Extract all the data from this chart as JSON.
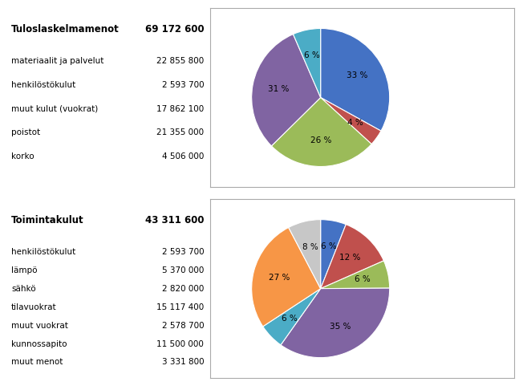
{
  "chart1": {
    "title": "Tuloslaskelmamenot",
    "title_value": "69 172 600",
    "values": [
      22855800,
      2593700,
      17862100,
      21355000,
      4506000
    ],
    "pct_labels": [
      "33 %",
      "4 %",
      "26 %",
      "31 %",
      "6 %"
    ],
    "colors": [
      "#4472C4",
      "#C0504D",
      "#9BBB59",
      "#8064A2",
      "#4BACC6"
    ],
    "legend_labels": [
      "materiaalit ja\npalvelut",
      "henkilöstökulut",
      "muut kulut\n(vuokrat)",
      "poistot",
      "korko"
    ],
    "items": [
      [
        "materiaalit ja palvelut",
        "22 855 800"
      ],
      [
        "henkilöstökulut",
        "2 593 700"
      ],
      [
        "muut kulut (vuokrat)",
        "17 862 100"
      ],
      [
        "poistot",
        "21 355 000"
      ],
      [
        "korko",
        "4 506 000"
      ]
    ]
  },
  "chart2": {
    "title": "Toimintakulut",
    "title_value": "43 311 600",
    "values": [
      2593700,
      5370000,
      2820000,
      15117400,
      2578700,
      11500000,
      3331800
    ],
    "pct_labels": [
      "6 %",
      "12 %",
      "6 %",
      "35 %",
      "6 %",
      "27 %",
      "8 %"
    ],
    "colors": [
      "#4472C4",
      "#C0504D",
      "#9BBB59",
      "#8064A2",
      "#4BACC6",
      "#F79646",
      "#C7C7C7"
    ],
    "legend_labels": [
      "henkilöstökulut",
      "lämpö",
      "sähkö",
      "tilavuokrat",
      "muut vuokrat",
      "kunnossapito",
      "muut menot"
    ],
    "items": [
      [
        "henkilöstökulut",
        "2 593 700"
      ],
      [
        "lämpö",
        "5 370 000"
      ],
      [
        "sähkö",
        "2 820 000"
      ],
      [
        "tilavuokrat",
        "15 117 400"
      ],
      [
        "muut vuokrat",
        "2 578 700"
      ],
      [
        "kunnossapito",
        "11 500 000"
      ],
      [
        "muut menot",
        "3 331 800"
      ]
    ]
  },
  "bg": "#FFFFFF",
  "border": "#AAAAAA"
}
